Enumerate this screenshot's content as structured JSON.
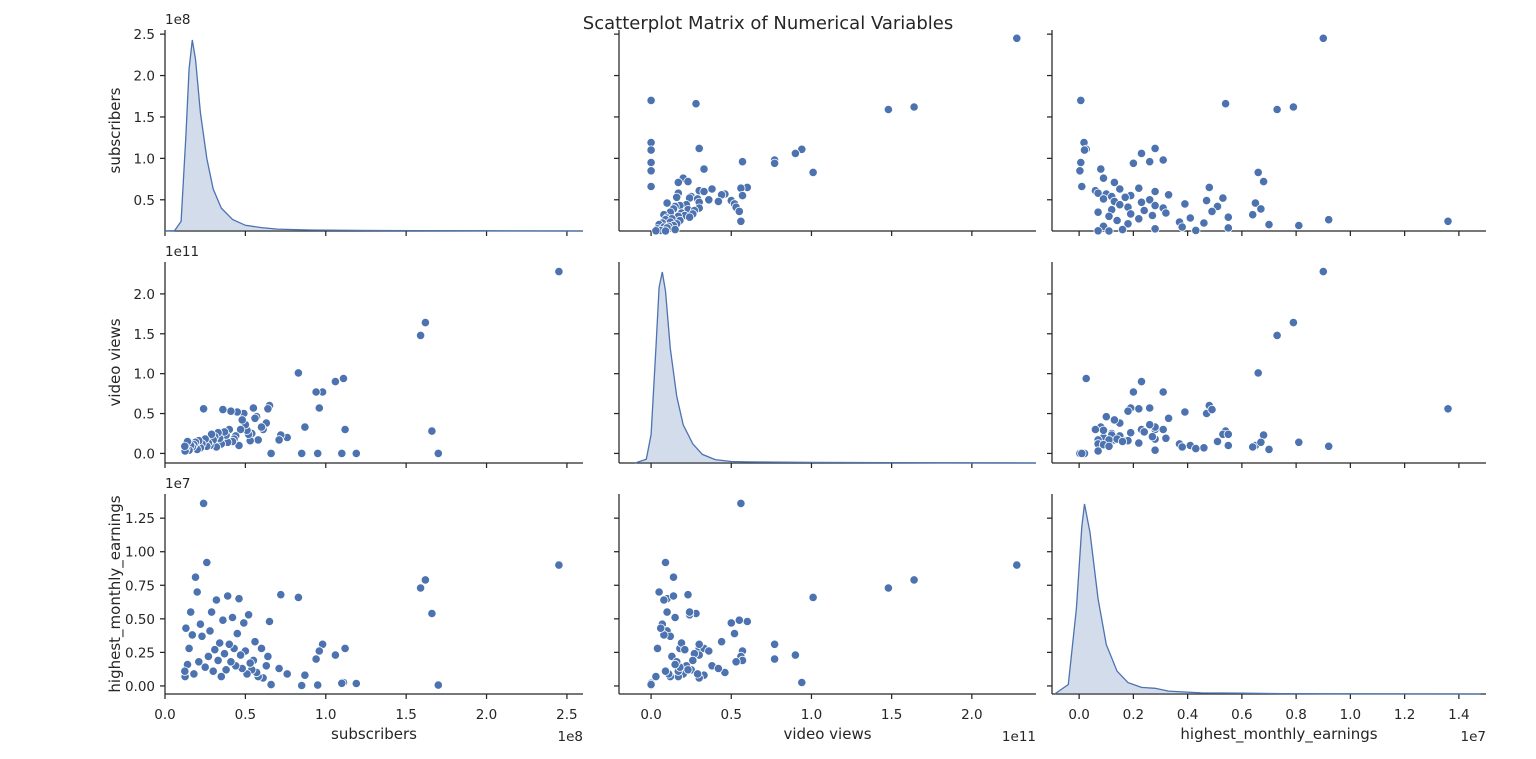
{
  "chart_data": {
    "type": "scatter",
    "title": "Scatterplot Matrix of Numerical Variables",
    "variables": [
      "subscribers",
      "video views",
      "highest_monthly_earnings"
    ],
    "axes": {
      "subscribers": {
        "range": [
          0,
          260000000
        ],
        "ticks": [
          0,
          50000000,
          100000000,
          150000000,
          200000000,
          250000000
        ],
        "tick_labels": [
          "0.0",
          "0.5",
          "1.0",
          "1.5",
          "2.0",
          "2.5"
        ],
        "y_ticks": [
          50000000,
          100000000,
          150000000,
          200000000,
          250000000
        ],
        "y_tick_labels": [
          "0.5",
          "1.0",
          "1.5",
          "2.0",
          "2.5"
        ],
        "y_range": [
          12300000,
          255000000
        ],
        "offset": "1e8"
      },
      "video views": {
        "range": [
          -20000000000,
          240000000000
        ],
        "ticks": [
          0,
          50000000000,
          100000000000,
          150000000000,
          200000000000,
          250000000000
        ],
        "tick_labels": [
          "0.0",
          "0.5",
          "1.0",
          "1.5",
          "2.0",
          "2.5"
        ],
        "y_ticks": [
          0,
          50000000000,
          100000000000,
          150000000000,
          200000000000
        ],
        "y_tick_labels": [
          "0.0",
          "0.5",
          "1.0",
          "1.5",
          "2.0"
        ],
        "y_range": [
          -12000000000,
          240000000000
        ],
        "offset": "1e11"
      },
      "highest_monthly_earnings": {
        "range": [
          -1000000,
          15000000
        ],
        "ticks": [
          0,
          2000000,
          4000000,
          6000000,
          8000000,
          10000000,
          12000000,
          14000000
        ],
        "tick_labels": [
          "0.0",
          "0.2",
          "0.4",
          "0.6",
          "0.8",
          "1.0",
          "1.2",
          "1.4"
        ],
        "y_ticks": [
          0,
          2500000,
          5000000,
          7500000,
          10000000,
          12500000
        ],
        "y_tick_labels": [
          "0.00",
          "0.25",
          "0.50",
          "0.75",
          "1.00",
          "1.25"
        ],
        "y_range": [
          -600000,
          14300000
        ],
        "offset": "1e7"
      }
    },
    "points": {
      "subscribers": [
        245000000,
        170000000,
        166000000,
        162000000,
        159000000,
        119000000,
        112000000,
        111000000,
        110000000,
        106000000,
        98000000,
        96000000,
        95000000,
        94000000,
        87000000,
        85000000,
        83000000,
        76000000,
        72000000,
        71000000,
        66000000,
        65000000,
        64000000,
        63000000,
        61000000,
        60000000,
        58000000,
        57000000,
        56000000,
        55000000,
        54000000,
        53000000,
        52000000,
        51000000,
        50000000,
        49000000,
        48000000,
        47000000,
        46000000,
        45000000,
        44000000,
        43000000,
        42000000,
        41000000,
        40000000,
        39000000,
        38000000,
        37000000,
        36000000,
        35000000,
        34000000,
        33000000,
        32000000,
        31000000,
        30000000,
        29000000,
        28000000,
        27000000,
        26000000,
        25000000,
        24000000,
        23000000,
        22000000,
        21000000,
        20000000,
        19000000,
        18000000,
        17000000,
        16000000,
        15000000,
        14000000,
        13000000,
        12500000,
        12300000
      ],
      "video views": [
        228000000000,
        0,
        28000000000,
        164000000000,
        148000000000,
        0,
        30000000000,
        94000000000,
        0,
        90000000000,
        77000000000,
        57000000000,
        0,
        77000000000,
        33000000000,
        0,
        101000000000,
        20000000000,
        23000000000,
        17000000000,
        0,
        60000000000,
        56000000000,
        38000000000,
        30000000000,
        33000000000,
        17000000000,
        46000000000,
        44000000000,
        57000000000,
        25000000000,
        16000000000,
        24000000000,
        29000000000,
        36000000000,
        50000000000,
        42000000000,
        30000000000,
        10000000000,
        52000000000,
        22000000000,
        18000000000,
        15000000000,
        53000000000,
        30000000000,
        14000000000,
        23000000000,
        27000000000,
        55000000000,
        12000000000,
        19000000000,
        26000000000,
        8000000000,
        21000000000,
        17000000000,
        24000000000,
        10000000000,
        13000000000,
        9000000000,
        18000000000,
        56000000000,
        12000000000,
        7000000000,
        16000000000,
        5000000000,
        14000000000,
        11000000000,
        8000000000,
        10000000000,
        4000000000,
        15000000000,
        6000000000,
        3000000000,
        9000000000
      ],
      "highest_monthly_earnings": [
        9000000,
        60000,
        5400000,
        7900000,
        7300000,
        180000,
        2800000,
        260000,
        200000,
        2300000,
        3100000,
        2600000,
        60000,
        2000000,
        800000,
        30000,
        6600000,
        900000,
        6800000,
        1300000,
        100000,
        4800000,
        2200000,
        1500000,
        600000,
        2800000,
        700000,
        1000000,
        3300000,
        1900000,
        1200000,
        1700000,
        5300000,
        900000,
        2600000,
        4700000,
        1300000,
        2300000,
        6500000,
        3900000,
        1500000,
        2800000,
        5100000,
        1800000,
        3100000,
        6700000,
        1200000,
        2400000,
        4900000,
        700000,
        3200000,
        1900000,
        6400000,
        2700000,
        1100000,
        5500000,
        4100000,
        2200000,
        9200000,
        1400000,
        13600000,
        3700000,
        4600000,
        1800000,
        7000000,
        8100000,
        900000,
        3800000,
        5500000,
        2800000,
        1600000,
        4300000,
        700000,
        1100000
      ]
    },
    "kde": {
      "subscribers": [
        [
          0,
          0
        ],
        [
          6000000,
          0.002
        ],
        [
          10000000,
          0.05
        ],
        [
          13000000,
          0.5
        ],
        [
          15000000,
          0.85
        ],
        [
          17000000,
          1.0
        ],
        [
          19000000,
          0.9
        ],
        [
          22000000,
          0.62
        ],
        [
          26000000,
          0.38
        ],
        [
          30000000,
          0.22
        ],
        [
          35000000,
          0.12
        ],
        [
          42000000,
          0.06
        ],
        [
          50000000,
          0.03
        ],
        [
          60000000,
          0.018
        ],
        [
          70000000,
          0.01
        ],
        [
          90000000,
          0.005
        ],
        [
          120000000,
          0.003
        ],
        [
          160000000,
          0.002
        ],
        [
          200000000,
          0.0008
        ],
        [
          260000000,
          0
        ]
      ],
      "video views": [
        [
          -10000000000,
          0
        ],
        [
          -3000000000,
          0.02
        ],
        [
          0,
          0.15
        ],
        [
          3000000000,
          0.6
        ],
        [
          5000000000,
          0.92
        ],
        [
          7000000000,
          1.0
        ],
        [
          9000000000,
          0.9
        ],
        [
          12000000000,
          0.6
        ],
        [
          16000000000,
          0.35
        ],
        [
          20000000000,
          0.2
        ],
        [
          26000000000,
          0.1
        ],
        [
          32000000000,
          0.045
        ],
        [
          40000000000,
          0.018
        ],
        [
          50000000000,
          0.008
        ],
        [
          60000000000,
          0.006
        ],
        [
          80000000000,
          0.004
        ],
        [
          100000000000,
          0.003
        ],
        [
          150000000000,
          0.002
        ],
        [
          180000000000,
          0.001
        ],
        [
          240000000000,
          0
        ]
      ],
      "highest_monthly_earnings": [
        [
          -900000,
          0
        ],
        [
          -400000,
          0.05
        ],
        [
          -100000,
          0.45
        ],
        [
          100000,
          0.88
        ],
        [
          200000,
          1.0
        ],
        [
          400000,
          0.85
        ],
        [
          700000,
          0.5
        ],
        [
          1000000,
          0.26
        ],
        [
          1400000,
          0.12
        ],
        [
          1800000,
          0.06
        ],
        [
          2300000,
          0.035
        ],
        [
          2800000,
          0.03
        ],
        [
          3300000,
          0.015
        ],
        [
          4500000,
          0.006
        ],
        [
          6000000,
          0.004
        ],
        [
          7500000,
          0.002
        ],
        [
          9000000,
          0.001
        ],
        [
          14800000,
          0
        ]
      ]
    }
  }
}
